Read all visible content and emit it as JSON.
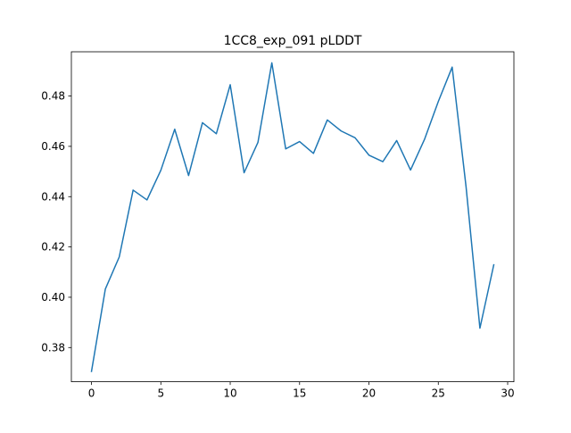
{
  "chart_data": {
    "type": "line",
    "title": "1CC8_exp_091 pLDDT",
    "xlabel": "",
    "ylabel": "",
    "xlim": [
      -1.45,
      30.45
    ],
    "ylim": [
      0.3664,
      0.4976
    ],
    "xticks": [
      0,
      5,
      10,
      15,
      20,
      25,
      30
    ],
    "yticks": [
      0.38,
      0.4,
      0.42,
      0.44,
      0.46,
      0.48
    ],
    "ytick_labels": [
      "0.38",
      "0.40",
      "0.42",
      "0.44",
      "0.46",
      "0.48"
    ],
    "grid": false,
    "series": [
      {
        "color": "#1f77b4",
        "x": [
          0,
          1,
          2,
          3,
          4,
          5,
          6,
          7,
          8,
          9,
          10,
          11,
          12,
          13,
          14,
          15,
          16,
          17,
          18,
          19,
          20,
          21,
          22,
          23,
          24,
          25,
          26,
          27,
          28,
          29
        ],
        "values": [
          0.3705,
          0.4033,
          0.416,
          0.4426,
          0.4387,
          0.4505,
          0.4668,
          0.4484,
          0.4694,
          0.465,
          0.4845,
          0.4495,
          0.4616,
          0.4932,
          0.459,
          0.4619,
          0.4572,
          0.4705,
          0.4661,
          0.4634,
          0.4565,
          0.4539,
          0.4623,
          0.4506,
          0.4627,
          0.4778,
          0.4915,
          0.444,
          0.3877,
          0.4129
        ]
      }
    ]
  }
}
